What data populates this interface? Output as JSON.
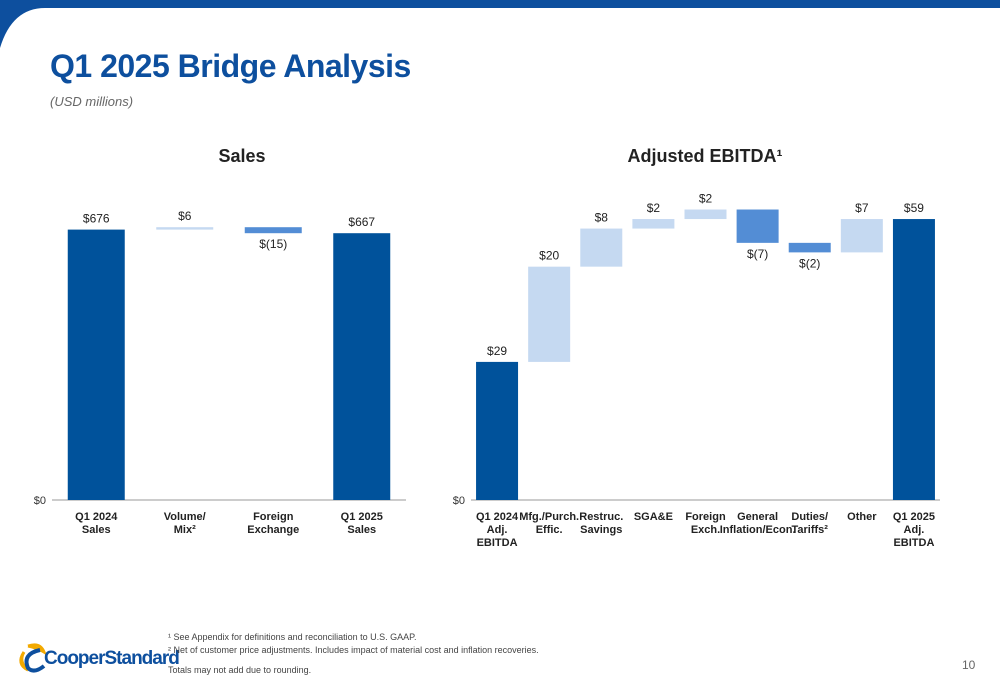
{
  "header": {
    "title": "Q1 2025 Bridge Analysis",
    "subtitle": "(USD millions)"
  },
  "chart_data": [
    {
      "type": "waterfall",
      "title": "Sales",
      "categories": [
        "Q1 2024\nSales",
        "Volume/\nMix²",
        "Foreign\nExchange",
        "Q1 2025\nSales"
      ],
      "values": [
        676,
        6,
        -15,
        667
      ],
      "value_labels": [
        "$676",
        "$6",
        "$(15)",
        "$667"
      ],
      "measures": [
        "total",
        "relative",
        "relative",
        "total"
      ],
      "colors": {
        "total": "#00529b",
        "increase": "#c5d9f1",
        "decrease": "#538dd5"
      },
      "ylim": [
        0,
        750
      ],
      "yticks": [
        {
          "value": 0,
          "label": "$0"
        }
      ]
    },
    {
      "type": "waterfall",
      "title": "Adjusted EBITDA¹",
      "categories": [
        "Q1 2024\nAdj.\nEBITDA",
        "Mfg./Purch.\nEffic.",
        "Restruc.\nSavings",
        "SGA&E",
        "Foreign\nExch.",
        "General\nInflation/Econ.",
        "Duties/\nTariffs²",
        "Other",
        "Q1 2025\nAdj.\nEBITDA"
      ],
      "values": [
        29,
        20,
        8,
        2,
        2,
        -7,
        -2,
        7,
        59
      ],
      "value_labels": [
        "$29",
        "$20",
        "$8",
        "$2",
        "$2",
        "$(7)",
        "$(2)",
        "$7",
        "$59"
      ],
      "measures": [
        "total",
        "relative",
        "relative",
        "relative",
        "relative",
        "relative",
        "relative",
        "relative",
        "total"
      ],
      "colors": {
        "total": "#00529b",
        "increase": "#c5d9f1",
        "decrease": "#538dd5"
      },
      "ylim": [
        0,
        63
      ],
      "yticks": [
        {
          "value": 0,
          "label": "$0"
        }
      ]
    }
  ],
  "footnotes": [
    "¹ See Appendix for definitions and reconciliation to U.S. GAAP.",
    "² Net of customer price adjustments. Includes impact of material cost and inflation recoveries.",
    "Totals may not add due to rounding."
  ],
  "logo": "CooperStandard",
  "page_number": "10"
}
